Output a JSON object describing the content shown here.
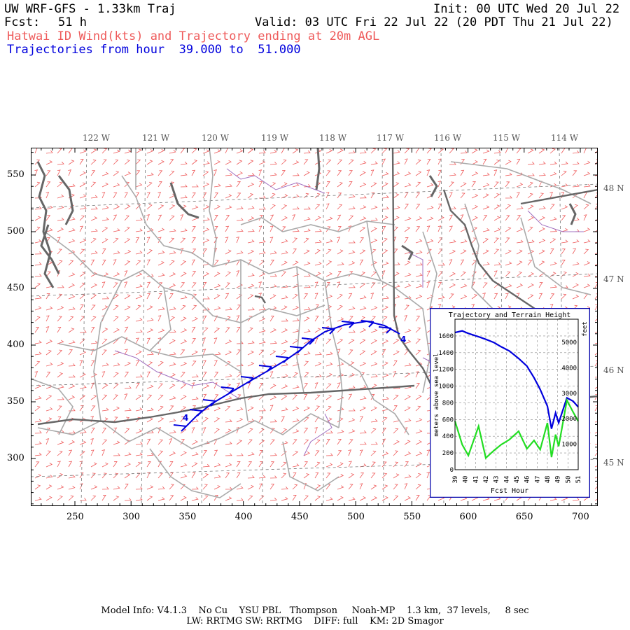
{
  "header": {
    "title": "UW WRF-GFS - 1.33km Traj",
    "init": "Init: 00 UTC Wed 20 Jul 22",
    "fcst_label": "Fcst:",
    "fcst_value": "51 h",
    "valid": "Valid: 03 UTC Fri 22 Jul 22 (20 PDT Thu 21 Jul 22)",
    "subtitle_red": "Hatwai ID Wind(kts) and Trajectory ending at 20m AGL",
    "subtitle_blue": "Trajectories from hour  39.000 to  51.000"
  },
  "map": {
    "x_ticks": [
      "250",
      "300",
      "350",
      "400",
      "450",
      "500",
      "550",
      "600",
      "650",
      "700"
    ],
    "y_ticks": [
      "550",
      "500",
      "450",
      "400",
      "350",
      "300"
    ],
    "lon_labels": [
      "122 W",
      "121 W",
      "120 W",
      "119 W",
      "118 W",
      "117 W",
      "116 W",
      "115 W",
      "114 W"
    ],
    "lat_labels": [
      "48 N",
      "47 N",
      "46 N",
      "45 N"
    ],
    "trajectory_color": "#0000dd",
    "wind_barb_color": "#ee5a5a",
    "trajectory_marker": "4"
  },
  "inset": {
    "title": "Trajectory and Terrain Height",
    "ylabel_left": "meters above sea level",
    "ylabel_right": "feet",
    "xlabel": "Fcst Hour",
    "left_ticks": [
      "1600",
      "1400",
      "1200",
      "1000",
      "800",
      "600",
      "400",
      "200",
      "0"
    ],
    "right_ticks": [
      "5000",
      "4000",
      "3000",
      "2000",
      "1000"
    ],
    "x_ticks": [
      "39",
      "40",
      "41",
      "42",
      "43",
      "44",
      "45",
      "46",
      "47",
      "48",
      "49",
      "50",
      "51"
    ],
    "trajectory_series_color": "#0000dd",
    "terrain_series_color": "#22dd22",
    "trajectory_height_m": [
      1640,
      1660,
      1630,
      1590,
      1560,
      1520,
      1470,
      1420,
      1330,
      1240,
      1100,
      960,
      760,
      490,
      680,
      560,
      860,
      820,
      750
    ],
    "terrain_height_m": [
      580,
      300,
      170,
      520,
      140,
      230,
      300,
      360,
      460,
      250,
      350,
      240,
      560,
      150,
      420,
      280,
      830,
      690,
      580
    ],
    "hours": [
      39,
      39.7,
      40.3,
      41.3,
      42.0,
      42.8,
      43.5,
      44.3,
      45.2,
      46.0,
      46.7,
      47.3,
      48.0,
      48.4,
      48.8,
      49.1,
      49.9,
      50.5,
      51
    ]
  },
  "footer": {
    "line1": "Model Info: V4.1.3    No Cu    YSU PBL   Thompson     Noah-MP    1.3 km,  37 levels,     8 sec",
    "line2": "LW: RRTMG SW: RRTMG    DIFF: full    KM: 2D Smagor"
  }
}
